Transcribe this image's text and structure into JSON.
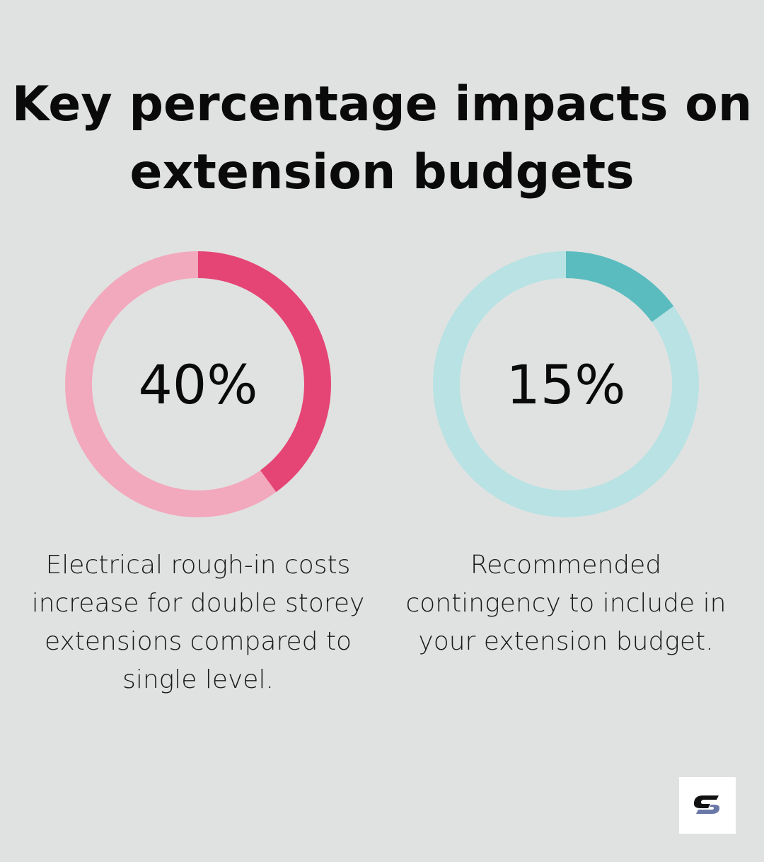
{
  "title": "Key percentage impacts on extension budgets",
  "chart_data": [
    {
      "type": "pie",
      "subtype": "donut",
      "value": 40,
      "unit": "%",
      "label": "40%",
      "description": "Electrical rough-in costs increase for double storey extensions compared to single level.",
      "colors": {
        "fill": "#e54575",
        "track": "#f2a8bd"
      }
    },
    {
      "type": "pie",
      "subtype": "donut",
      "value": 15,
      "unit": "%",
      "label": "15%",
      "description": "Recommended contingency to include in your extension budget.",
      "colors": {
        "fill": "#5bbcbf",
        "track": "#b8e2e3"
      }
    }
  ],
  "logo": {
    "icon": "brand-s-logo",
    "colors": [
      "#111111",
      "#6a78a8"
    ]
  }
}
